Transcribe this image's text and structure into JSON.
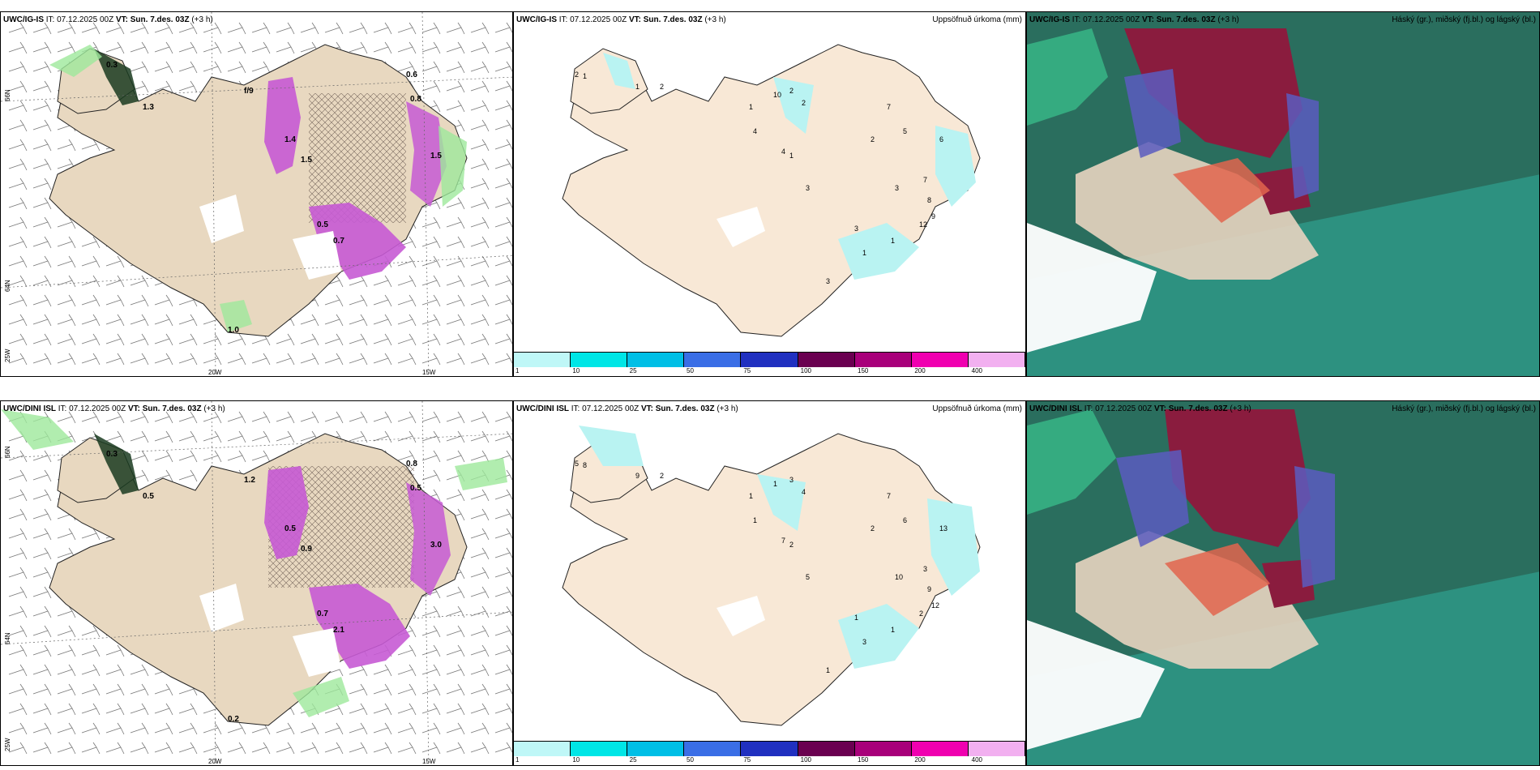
{
  "rows": [
    {
      "model": "UWC/IG-IS",
      "it_label": "IT:",
      "it": "07.12.2025 00Z",
      "vt_label": "VT:",
      "vt": "Sun. 7.des. 03Z",
      "lead": "(+3 h)",
      "p1_values": [
        "0.3",
        "1.3",
        "1.5",
        "1.4",
        "0.5",
        "0.7",
        "0.6",
        "0.8",
        "1.5",
        "f/9",
        "1.0"
      ],
      "p2_values": [
        "2",
        "1",
        "1",
        "2",
        "10",
        "2",
        "2",
        "1",
        "4",
        "3",
        "4",
        "1",
        "2",
        "7",
        "5",
        "6",
        "3",
        "7",
        "8",
        "9",
        "12",
        "1",
        "3",
        "1",
        "3"
      ],
      "axis": {
        "lat_a": "66N",
        "lat_b": "64N",
        "lon_a": "20W",
        "lon_b": "15W",
        "lat_c": "25W"
      }
    },
    {
      "model": "UWC/DINI ISL",
      "it_label": "IT:",
      "it": "07.12.2025 00Z",
      "vt_label": "VT:",
      "vt": "Sun. 7.des. 03Z",
      "lead": "(+3 h)",
      "p1_values": [
        "0.3",
        "0.5",
        "0.9",
        "0.5",
        "0.7",
        "2.1",
        "0.8",
        "0.5",
        "3.0",
        "1.2",
        "0.2"
      ],
      "p2_values": [
        "5",
        "8",
        "9",
        "2",
        "1",
        "3",
        "4",
        "1",
        "1",
        "5",
        "7",
        "2",
        "2",
        "7",
        "6",
        "13",
        "10",
        "3",
        "9",
        "12",
        "2",
        "1",
        "1",
        "3",
        "1"
      ],
      "axis": {
        "lat_a": "66N",
        "lat_b": "64N",
        "lon_a": "20W",
        "lon_b": "15W",
        "lat_c": "25W"
      }
    }
  ],
  "p2_title": "Uppsöfnuð úrkoma (mm)",
  "p3_title": "Háský (gr.), miðský (fj.bl.) og lágský (bl.)",
  "colorbar": {
    "ticks": [
      "1",
      "10",
      "25",
      "50",
      "75",
      "100",
      "150",
      "200",
      "400"
    ],
    "colors": [
      "#bff7f7",
      "#00e6e6",
      "#00bfe6",
      "#3a6ee6",
      "#2030c0",
      "#6a0050",
      "#a8007a",
      "#f000b0",
      "#f2b0f0"
    ]
  },
  "colors": {
    "land": "#f2dcc4",
    "precip_land": "#dfc7ad",
    "magenta": "#c65ad4",
    "green": "#9ee89b",
    "cyan": "#b9f3f2",
    "sea_dark": "#2a6e5e",
    "sea_teal": "#2e9a88",
    "cloud_red": "#8a1c3e",
    "cloud_orange": "#e2654d",
    "cloud_blue": "#5a5cc0"
  }
}
